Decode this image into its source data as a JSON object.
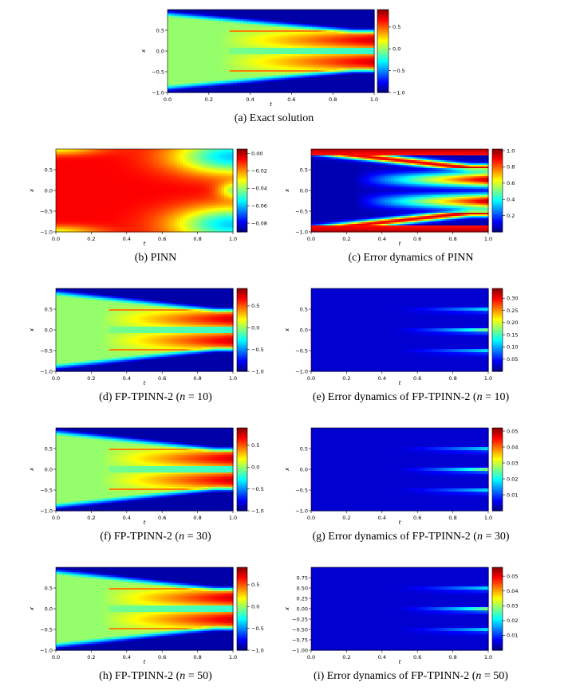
{
  "figure": {
    "panels": [
      {
        "id": "a",
        "kind": "solution",
        "caption": "(a) Exact solution",
        "xlabel": "t",
        "ylabel": "x",
        "xlim": [
          0.0,
          1.0
        ],
        "ylim": [
          -1.0,
          1.0
        ],
        "xticks": [
          "0.0",
          "0.2",
          "0.4",
          "0.6",
          "0.8",
          "1.0"
        ],
        "yticks": [
          "−1.0",
          "−0.5",
          "0.0",
          "0.5"
        ],
        "cbar_range": [
          -1.0,
          0.9
        ],
        "cbar_ticks": [
          "0.5",
          "0.0",
          "−0.5",
          "−1.0"
        ]
      },
      {
        "id": "b",
        "kind": "pinn",
        "caption": "(b) PINN",
        "xlabel": "t",
        "ylabel": "x",
        "xlim": [
          0.0,
          1.0
        ],
        "ylim": [
          -1.0,
          1.0
        ],
        "xticks": [
          "0.0",
          "0.2",
          "0.4",
          "0.6",
          "0.8",
          "1.0"
        ],
        "yticks": [
          "−1.0",
          "−0.5",
          "0.0",
          "0.5"
        ],
        "cbar_range": [
          -0.09,
          0.005
        ],
        "cbar_ticks": [
          "0.00",
          "−0.02",
          "−0.04",
          "−0.06",
          "−0.08"
        ]
      },
      {
        "id": "c",
        "kind": "err_pinn",
        "caption": "(c) Error dynamics of PINN",
        "xlabel": "t",
        "ylabel": "x",
        "xlim": [
          0.0,
          1.0
        ],
        "ylim": [
          -1.0,
          1.0
        ],
        "xticks": [
          "0.0",
          "0.2",
          "0.4",
          "0.6",
          "0.8",
          "1.0"
        ],
        "yticks": [
          "−1.0",
          "−0.5",
          "0.0",
          "0.5"
        ],
        "cbar_range": [
          0.0,
          1.02
        ],
        "cbar_ticks": [
          "1.0",
          "0.8",
          "0.6",
          "0.4",
          "0.2"
        ]
      },
      {
        "id": "d",
        "kind": "solution",
        "caption_pre": "(d) FP-TPINN-2 (",
        "caption_n": "n",
        "caption_post": " = 10)",
        "xlabel": "t",
        "ylabel": "x",
        "xlim": [
          0.0,
          1.0
        ],
        "ylim": [
          -1.0,
          1.0
        ],
        "xticks": [
          "0.0",
          "0.2",
          "0.4",
          "0.6",
          "0.8",
          "1.0"
        ],
        "yticks": [
          "−1.0",
          "−0.5",
          "0.0",
          "0.5"
        ],
        "cbar_range": [
          -1.0,
          0.9
        ],
        "cbar_ticks": [
          "0.5",
          "0.0",
          "−0.5",
          "−1.0"
        ]
      },
      {
        "id": "e",
        "kind": "err_small",
        "caption_pre": "(e) Error dynamics of FP-TPINN-2 (",
        "caption_n": "n",
        "caption_post": " = 10)",
        "xlabel": "t",
        "ylabel": "x",
        "xlim": [
          0.0,
          1.0
        ],
        "ylim": [
          -1.0,
          1.0
        ],
        "xticks": [
          "0.0",
          "0.2",
          "0.4",
          "0.6",
          "0.8",
          "1.0"
        ],
        "yticks": [
          "−1.0",
          "−0.5",
          "0.0",
          "0.5"
        ],
        "cbar_range": [
          0.0,
          0.34
        ],
        "cbar_ticks": [
          "0.30",
          "0.25",
          "0.20",
          "0.15",
          "0.10",
          "0.05"
        ]
      },
      {
        "id": "f",
        "kind": "solution",
        "caption_pre": "(f) FP-TPINN-2 (",
        "caption_n": "n",
        "caption_post": " = 30)",
        "xlabel": "t",
        "ylabel": "x",
        "xlim": [
          0.0,
          1.0
        ],
        "ylim": [
          -1.0,
          1.0
        ],
        "xticks": [
          "0.0",
          "0.2",
          "0.4",
          "0.6",
          "0.8",
          "1.0"
        ],
        "yticks": [
          "−1.0",
          "−0.5",
          "0.0",
          "0.5"
        ],
        "cbar_range": [
          -1.0,
          0.9
        ],
        "cbar_ticks": [
          "0.5",
          "0.0",
          "−0.5",
          "−1.0"
        ]
      },
      {
        "id": "g",
        "kind": "err_small",
        "caption_pre": "(g) Error dynamics of FP-TPINN-2 (",
        "caption_n": "n",
        "caption_post": " = 30)",
        "xlabel": "t",
        "ylabel": "x",
        "xlim": [
          0.0,
          1.0
        ],
        "ylim": [
          -1.0,
          1.0
        ],
        "xticks": [
          "0.0",
          "0.2",
          "0.4",
          "0.6",
          "0.8",
          "1.0"
        ],
        "yticks": [
          "−1.0",
          "−0.5",
          "0.0",
          "0.5"
        ],
        "cbar_range": [
          0.0,
          0.052
        ],
        "cbar_ticks": [
          "0.05",
          "0.04",
          "0.03",
          "0.02",
          "0.01"
        ]
      },
      {
        "id": "h",
        "kind": "solution",
        "caption_pre": "(h) FP-TPINN-2 (",
        "caption_n": "n",
        "caption_post": " = 50)",
        "xlabel": "t",
        "ylabel": "x",
        "xlim": [
          0.0,
          1.0
        ],
        "ylim": [
          -1.0,
          1.0
        ],
        "xticks": [
          "0.0",
          "0.2",
          "0.4",
          "0.6",
          "0.8",
          "1.0"
        ],
        "yticks": [
          "−1.0",
          "−0.5",
          "0.0",
          "0.5"
        ],
        "cbar_range": [
          -1.0,
          0.9
        ],
        "cbar_ticks": [
          "0.5",
          "0.0",
          "−0.5",
          "−1.0"
        ]
      },
      {
        "id": "i",
        "kind": "err_small",
        "caption_pre": "(i) Error dynamics of FP-TPINN-2 (",
        "caption_n": "n",
        "caption_post": " = 50)",
        "xlabel": "t",
        "ylabel": "x",
        "xlim": [
          0.0,
          1.0
        ],
        "ylim": [
          -1.0,
          1.0
        ],
        "xticks": [
          "0.0",
          "0.2",
          "0.4",
          "0.6",
          "0.8",
          "1.0"
        ],
        "yticks": [
          "−1.00",
          "−0.75",
          "−0.50",
          "−0.25",
          "0.00",
          "0.25",
          "0.50",
          "0.75"
        ],
        "cbar_range": [
          0.0,
          0.056
        ],
        "cbar_ticks": [
          "0.05",
          "0.04",
          "0.03",
          "0.02",
          "0.01"
        ]
      }
    ]
  },
  "chart_data": {
    "type": "heatmap",
    "colormap": "jet",
    "x_variable": "t",
    "y_variable": "x",
    "xlim": [
      0.0,
      1.0
    ],
    "ylim": [
      -1.0,
      1.0
    ],
    "description_series": [
      {
        "name": "Exact solution",
        "value_range": [
          -1.0,
          0.9
        ]
      },
      {
        "name": "PINN",
        "value_range": [
          -0.09,
          0.005
        ]
      },
      {
        "name": "Error dynamics of PINN",
        "value_range": [
          0.0,
          1.02
        ]
      },
      {
        "name": "FP-TPINN-2 (n = 10)",
        "value_range": [
          -1.0,
          0.9
        ]
      },
      {
        "name": "Error dynamics of FP-TPINN-2 (n = 10)",
        "value_range": [
          0.0,
          0.34
        ]
      },
      {
        "name": "FP-TPINN-2 (n = 30)",
        "value_range": [
          -1.0,
          0.9
        ]
      },
      {
        "name": "Error dynamics of FP-TPINN-2 (n = 30)",
        "value_range": [
          0.0,
          0.052
        ]
      },
      {
        "name": "FP-TPINN-2 (n = 50)",
        "value_range": [
          -1.0,
          0.9
        ]
      },
      {
        "name": "Error dynamics of FP-TPINN-2 (n = 50)",
        "value_range": [
          0.0,
          0.056
        ]
      }
    ]
  }
}
